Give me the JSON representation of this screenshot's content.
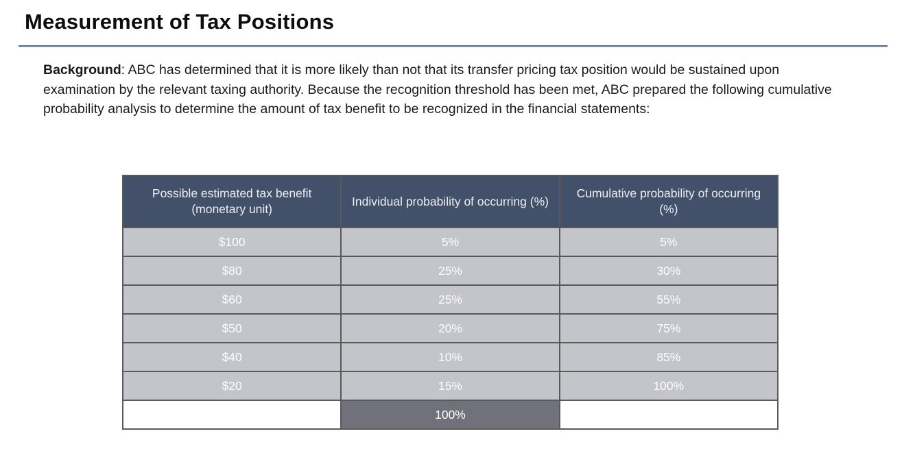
{
  "page": {
    "title": "Measurement of Tax Positions"
  },
  "background_paragraph": {
    "label": "Background",
    "text": ": ABC has determined that it is more likely than not that its transfer pricing tax position would be sustained upon examination by the relevant taxing authority. Because the recognition threshold has been met, ABC prepared the following cumulative probability analysis to determine the amount of tax benefit to be recognized in the financial statements:"
  },
  "table": {
    "headers": [
      "Possible estimated tax benefit (monetary unit)",
      "Individual probability of occurring (%)",
      "Cumulative probability of occurring (%)"
    ],
    "rows": [
      [
        "$100",
        "5%",
        "5%"
      ],
      [
        "$80",
        "25%",
        "30%"
      ],
      [
        "$60",
        "25%",
        "55%"
      ],
      [
        "$50",
        "20%",
        "75%"
      ],
      [
        "$40",
        "10%",
        "85%"
      ],
      [
        "$20",
        "15%",
        "100%"
      ]
    ],
    "total_row": {
      "benefit": "",
      "individual_total": "100%",
      "cumulative": ""
    }
  },
  "colors": {
    "header_bg": "#42506a",
    "row_bg": "#c4c4cb",
    "total_cell_bg": "#71717b",
    "title_rule": "#5d6e8c",
    "cell_border": "#595959"
  }
}
